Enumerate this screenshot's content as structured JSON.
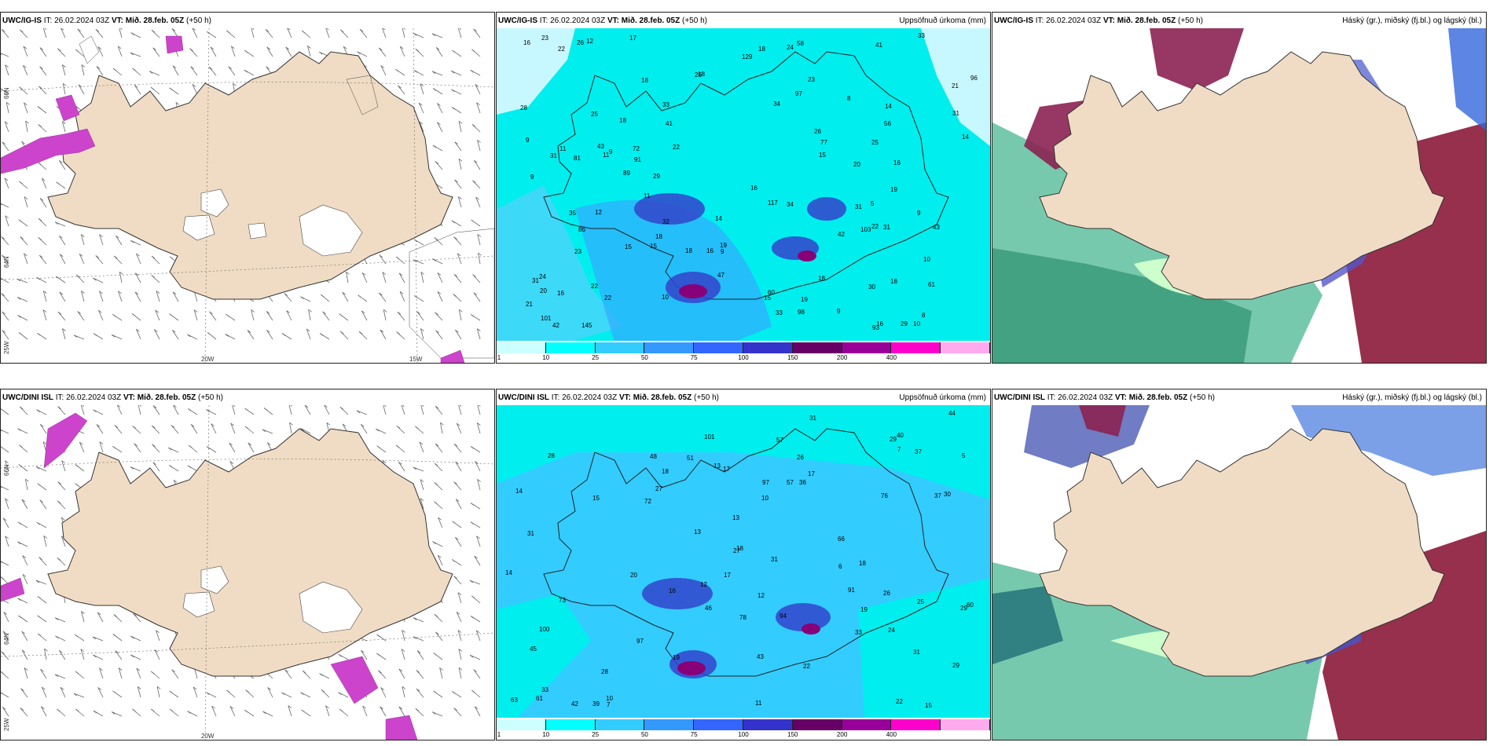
{
  "panels": {
    "p1": {
      "model": "UWC/IG-IS",
      "it": "IT: 26.02.2024 03Z",
      "vt": "VT: Mið. 28.feb. 05Z",
      "lead": "(+50 h)",
      "right": ""
    },
    "p2": {
      "model": "UWC/IG-IS",
      "it": "IT: 26.02.2024 03Z",
      "vt": "VT: Mið. 28.feb. 05Z",
      "lead": "(+50 h)",
      "right": "Uppsöfnuð úrkoma (mm)"
    },
    "p3": {
      "model": "UWC/IG-IS",
      "it": "IT: 26.02.2024 03Z",
      "vt": "VT: Mið. 28.feb. 05Z",
      "lead": "(+50 h)",
      "right": "Háský (gr.), miðský (fj.bl.) og lágský (bl.)"
    },
    "p4": {
      "model": "UWC/DINI ISL",
      "it": "IT: 26.02.2024 03Z",
      "vt": "VT: Mið. 28.feb. 05Z",
      "lead": "(+50 h)",
      "right": ""
    },
    "p5": {
      "model": "UWC/DINI ISL",
      "it": "IT: 26.02.2024 03Z",
      "vt": "VT: Mið. 28.feb. 05Z",
      "lead": "(+50 h)",
      "right": "Uppsöfnuð úrkoma (mm)"
    },
    "p6": {
      "model": "UWC/DINI ISL",
      "it": "IT: 26.02.2024 03Z",
      "vt": "VT: Mið. 28.feb. 05Z",
      "lead": "(+50 h)",
      "right": "Háský (gr.), miðský (fj.bl.) og lágský (bl.)"
    }
  },
  "axes": {
    "lon_20w": "20W",
    "lon_15w": "15W",
    "lat_66n": "66N",
    "lat_64n": "64N",
    "lat_65n": "65N",
    "lat_25w": "25W"
  },
  "colorbar": {
    "ticks": [
      "1",
      "10",
      "25",
      "50",
      "75",
      "100",
      "150",
      "200",
      "400"
    ],
    "colors": [
      "#ccffff",
      "#00ffff",
      "#33ccff",
      "#3399ff",
      "#3366ff",
      "#3333cc",
      "#660066",
      "#990099",
      "#ff00cc",
      "#ffaaee"
    ]
  },
  "precip_labels_top": [
    "14",
    "11",
    "26",
    "5",
    "10",
    "18",
    "16",
    "11",
    "15",
    "20",
    "16",
    "18",
    "16",
    "16",
    "29",
    "18",
    "16",
    "14",
    "21",
    "22",
    "29",
    "9",
    "19",
    "15",
    "18",
    "15",
    "15",
    "24",
    "14",
    "31",
    "18",
    "18",
    "16",
    "10",
    "8",
    "9",
    "11",
    "12",
    "12",
    "10",
    "9",
    "8",
    "9",
    "9",
    "9",
    "20",
    "19",
    "18",
    "17",
    "23",
    "33",
    "25",
    "34",
    "41",
    "31",
    "26",
    "22",
    "22",
    "23",
    "22",
    "24",
    "18",
    "28",
    "31",
    "30",
    "31",
    "33",
    "34",
    "42",
    "32",
    "35",
    "43",
    "47",
    "56",
    "61",
    "60",
    "43",
    "81",
    "96",
    "93",
    "91",
    "101",
    "103",
    "97",
    "86",
    "145",
    "129",
    "117",
    "41",
    "72",
    "58",
    "98",
    "89",
    "77",
    "33",
    "22",
    "21",
    "19",
    "25",
    "23",
    "26",
    "31",
    "42"
  ],
  "precip_labels_bottom": [
    "13",
    "15",
    "19",
    "11",
    "18",
    "17",
    "16",
    "18",
    "22",
    "20",
    "13",
    "15",
    "26",
    "44",
    "31",
    "33",
    "27",
    "28",
    "29",
    "37",
    "43",
    "36",
    "31",
    "39",
    "45",
    "61",
    "78",
    "94",
    "72",
    "76",
    "97",
    "100",
    "101",
    "97",
    "91",
    "66",
    "73",
    "57",
    "60",
    "51",
    "63",
    "57",
    "46",
    "48",
    "40",
    "31",
    "29",
    "33",
    "42",
    "37",
    "31",
    "27",
    "26",
    "25",
    "30",
    "29",
    "28",
    "24",
    "17",
    "22",
    "17",
    "7",
    "7",
    "10",
    "14",
    "14",
    "13",
    "18",
    "12",
    "19",
    "10",
    "6",
    "12",
    "5"
  ],
  "prec_top": "UWC/IG-IS"
}
